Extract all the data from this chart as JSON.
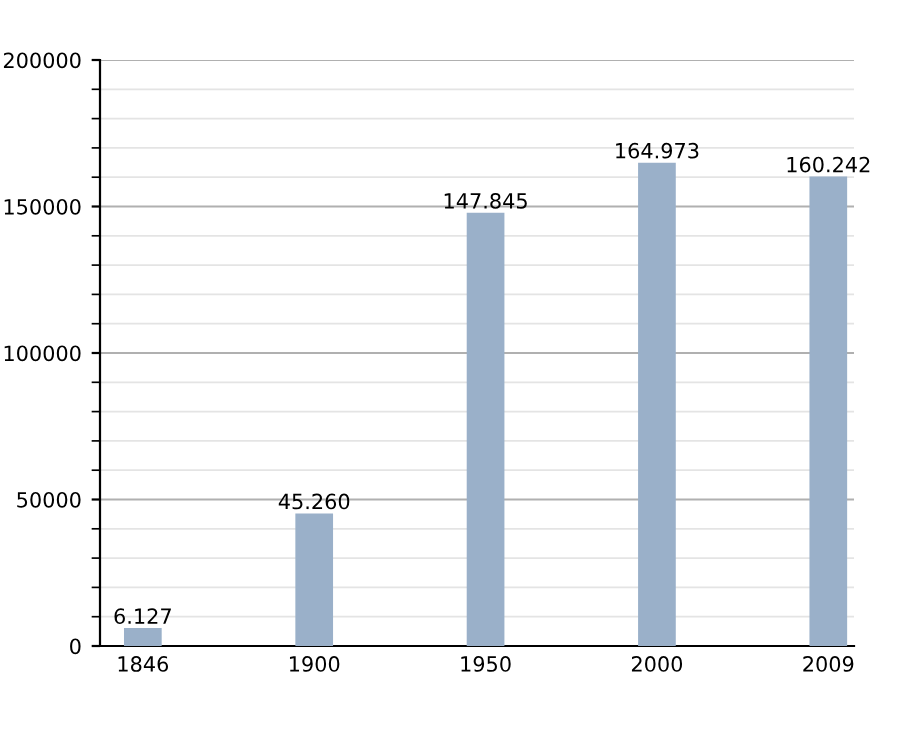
{
  "chart_data": {
    "type": "bar",
    "categories": [
      "1846",
      "1900",
      "1950",
      "2000",
      "2009"
    ],
    "values": [
      6127,
      45260,
      147845,
      164973,
      160242
    ],
    "value_labels": [
      "6.127",
      "45.260",
      "147.845",
      "164.973",
      "160.242"
    ],
    "color": "#9ab0c9",
    "ylim": [
      0,
      200000
    ],
    "yticks": [
      0,
      50000,
      100000,
      150000,
      200000
    ],
    "grid": "y"
  }
}
